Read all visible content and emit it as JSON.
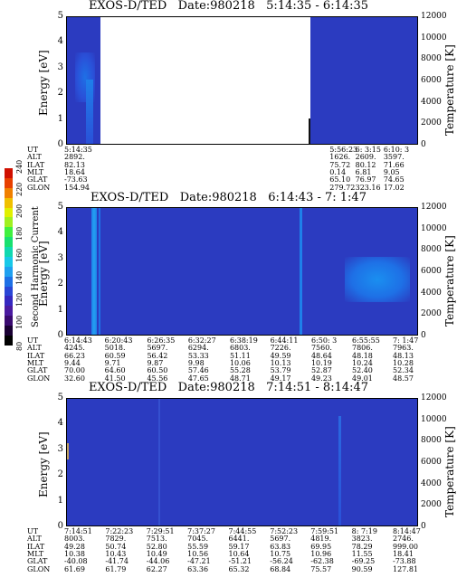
{
  "colorbar": {
    "title": "Second Harmonic Current",
    "ticks": [
      "80",
      "100",
      "120",
      "140",
      "160",
      "180",
      "200",
      "220",
      "240"
    ],
    "colors": [
      "#000000",
      "#1a0033",
      "#3a0a70",
      "#4a1aa0",
      "#3528c0",
      "#2a46d6",
      "#1e70e6",
      "#1fa0f0",
      "#18c8e8",
      "#10d8b0",
      "#18e070",
      "#40f040",
      "#a0f020",
      "#e0f000",
      "#f0c000",
      "#f08000",
      "#e84000",
      "#d01000"
    ]
  },
  "panels": [
    {
      "title": "EXOS-D/TED   Date:980218   5:14:35 - 6:14:35",
      "left_ticks": [
        "5",
        "4",
        "3",
        "2",
        "1",
        "0"
      ],
      "right_ticks": [
        "12000",
        "10000",
        "8000",
        "6000",
        "4000",
        "2000",
        "0"
      ],
      "ylabel": "Energy [eV]",
      "y2label": "Temperature [K]",
      "row_labels": [
        "UT",
        "ALT",
        "ILAT",
        "MLT",
        "GLAT",
        "GLON"
      ],
      "columns": [
        {
          "pos": 0.0,
          "values": [
            "5:14:35",
            "2892.",
            "82.13",
            "18.64",
            "-73.63",
            "154.94"
          ]
        },
        {
          "pos": 0.808,
          "values": [
            "5:56:23",
            "1626.",
            "75.72",
            "0.14",
            "65.10",
            "279.72"
          ]
        },
        {
          "pos": 0.886,
          "values": [
            "6: 3:15",
            "2609.",
            "80.12",
            "6.81",
            "76.97",
            "323.16"
          ]
        },
        {
          "pos": 0.972,
          "values": [
            "6:10: 3",
            "3597.",
            "71.66",
            "9.05",
            "74.65",
            "17.02"
          ]
        }
      ]
    },
    {
      "title": "EXOS-D/TED   Date:980218   6:14:43 - 7: 1:47",
      "left_ticks": [
        "5",
        "4",
        "3",
        "2",
        "1",
        "0"
      ],
      "right_ticks": [
        "12000",
        "10000",
        "8000",
        "6000",
        "4000",
        "2000",
        "0"
      ],
      "ylabel": "Energy [eV]",
      "y2label": "Temperature [K]",
      "row_labels": [
        "UT",
        "ALT",
        "ILAT",
        "MLT",
        "GLAT",
        "GLON"
      ],
      "columns": [
        {
          "pos": 0.0,
          "values": [
            "6:14:43",
            "4245.",
            "66.23",
            "9.44",
            "70.00",
            "32.60"
          ]
        },
        {
          "pos": 0.123,
          "values": [
            "6:20:43",
            "5018.",
            "60.59",
            "9.71",
            "64.60",
            "41.50"
          ]
        },
        {
          "pos": 0.252,
          "values": [
            "6:26:35",
            "5697.",
            "56.42",
            "9.87",
            "60.50",
            "45.56"
          ]
        },
        {
          "pos": 0.377,
          "values": [
            "6:32:27",
            "6294.",
            "53.33",
            "9.98",
            "57.46",
            "47.65"
          ]
        },
        {
          "pos": 0.504,
          "values": [
            "6:38:19",
            "6803.",
            "51.11",
            "10.06",
            "55.28",
            "48.71"
          ]
        },
        {
          "pos": 0.627,
          "values": [
            "6:44:11",
            "7226.",
            "49.59",
            "10.13",
            "53.79",
            "49.17"
          ]
        },
        {
          "pos": 0.752,
          "values": [
            "6:50: 3",
            "7560.",
            "48.64",
            "10.19",
            "52.87",
            "49.23"
          ]
        },
        {
          "pos": 0.876,
          "values": [
            "6:55:55",
            "7806.",
            "48.18",
            "10.24",
            "52.40",
            "49.01"
          ]
        },
        {
          "pos": 1.0,
          "values": [
            "7: 1:47",
            "7963.",
            "48.13",
            "10.28",
            "52.34",
            "48.57"
          ]
        }
      ]
    },
    {
      "title": "EXOS-D/TED   Date:980218   7:14:51 - 8:14:47",
      "left_ticks": [
        "5",
        "4",
        "3",
        "2",
        "1",
        "0"
      ],
      "right_ticks": [
        "12000",
        "10000",
        "8000",
        "6000",
        "4000",
        "2000",
        "0"
      ],
      "ylabel": "Energy [eV]",
      "y2label": "Temperature [K]",
      "row_labels": [
        "UT",
        "ALT",
        "ILAT",
        "MLT",
        "GLAT",
        "GLON"
      ],
      "columns": [
        {
          "pos": 0.0,
          "values": [
            "7:14:51",
            "8003.",
            "49.28",
            "10.38",
            "-40.08",
            "61.69"
          ]
        },
        {
          "pos": 0.125,
          "values": [
            "7:22:23",
            "7829.",
            "50.74",
            "10.43",
            "-41.74",
            "61.79"
          ]
        },
        {
          "pos": 0.25,
          "values": [
            "7:29:51",
            "7513.",
            "52.80",
            "10.49",
            "-44.06",
            "62.27"
          ]
        },
        {
          "pos": 0.375,
          "values": [
            "7:37:27",
            "7045.",
            "55.59",
            "10.56",
            "-47.21",
            "63.36"
          ]
        },
        {
          "pos": 0.5,
          "values": [
            "7:44:55",
            "6441.",
            "59.17",
            "10.64",
            "-51.21",
            "65.32"
          ]
        },
        {
          "pos": 0.626,
          "values": [
            "7:52:23",
            "5697.",
            "63.83",
            "10.75",
            "-56.24",
            "68.84"
          ]
        },
        {
          "pos": 0.75,
          "values": [
            "7:59:51",
            "4819.",
            "69.95",
            "10.96",
            "-62.38",
            "75.57"
          ]
        },
        {
          "pos": 0.875,
          "values": [
            "8: 7:19",
            "3823.",
            "78.29",
            "11.55",
            "-69.25",
            "90.59"
          ]
        },
        {
          "pos": 1.0,
          "values": [
            "8:14:47",
            "2746.",
            "999.00",
            "18.41",
            "-73.88",
            "127.81"
          ]
        }
      ]
    }
  ]
}
